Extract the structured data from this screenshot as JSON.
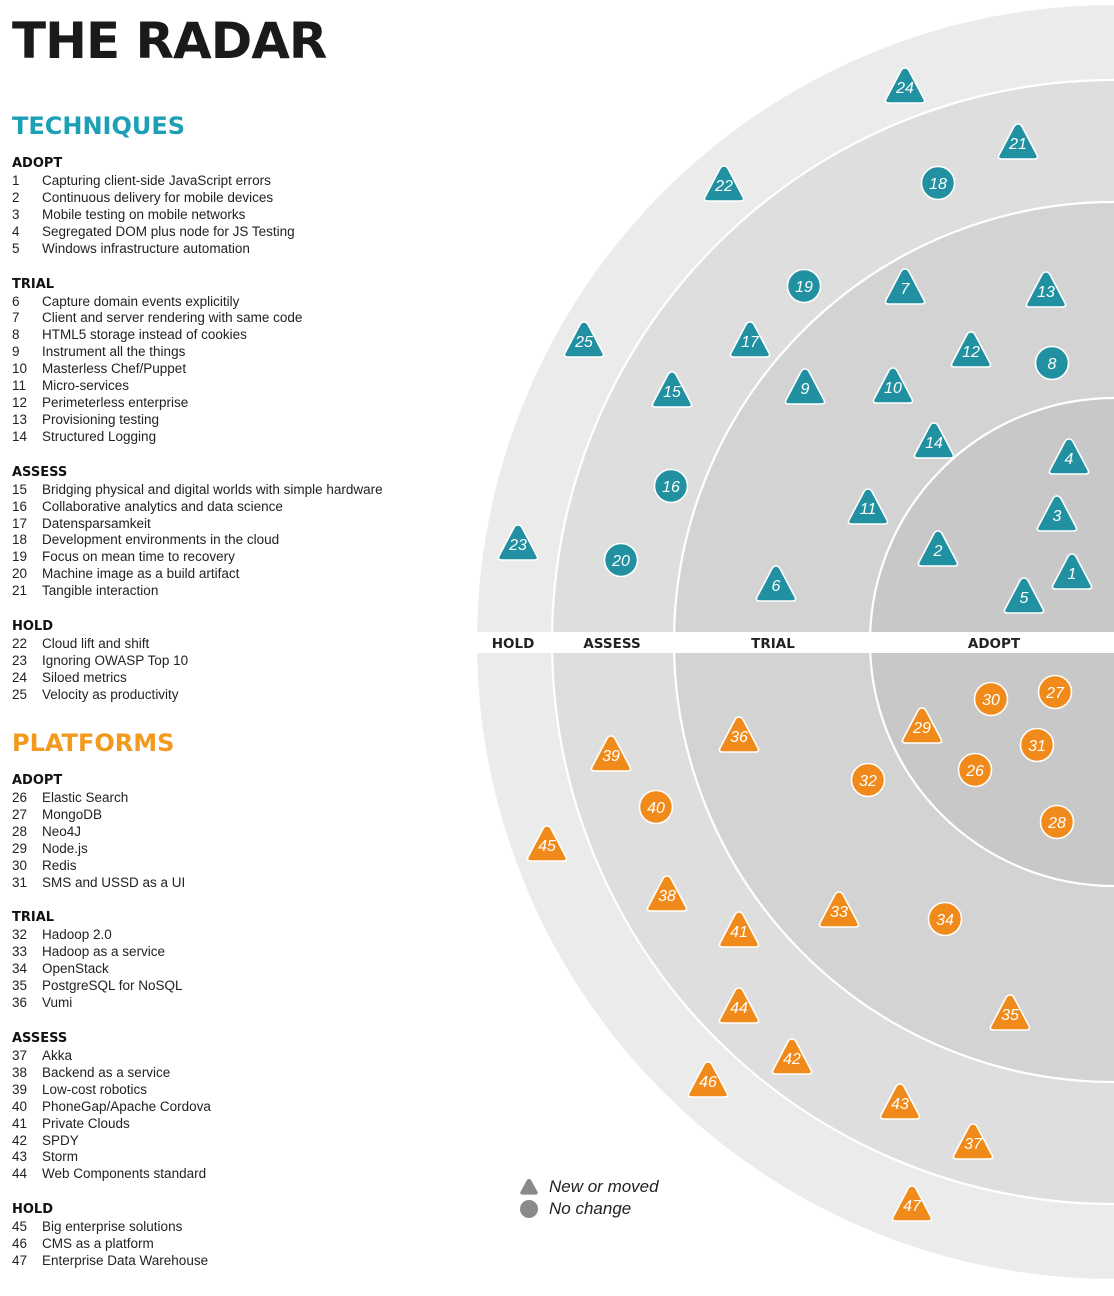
{
  "title": "THE RADAR",
  "colors": {
    "techniques": "#1da0b5",
    "techniques_fill": "#2190a1",
    "platforms": "#f39a1c",
    "platforms_fill": "#f08a1a"
  },
  "techniques": {
    "heading": "TECHNIQUES",
    "groups": [
      {
        "ring": "ADOPT",
        "items": [
          {
            "num": "1",
            "name": "Capturing client-side JavaScript errors"
          },
          {
            "num": "2",
            "name": "Continuous delivery for mobile devices"
          },
          {
            "num": "3",
            "name": "Mobile testing on mobile networks"
          },
          {
            "num": "4",
            "name": "Segregated DOM plus node for JS Testing"
          },
          {
            "num": "5",
            "name": "Windows infrastructure automation"
          }
        ]
      },
      {
        "ring": "TRIAL",
        "items": [
          {
            "num": "6",
            "name": "Capture domain events explicitily"
          },
          {
            "num": "7",
            "name": "Client and server rendering with same code"
          },
          {
            "num": "8",
            "name": "HTML5 storage instead of cookies"
          },
          {
            "num": "9",
            "name": "Instrument all the things"
          },
          {
            "num": "10",
            "name": "Masterless Chef/Puppet"
          },
          {
            "num": "11",
            "name": "Micro-services"
          },
          {
            "num": "12",
            "name": "Perimeterless enterprise"
          },
          {
            "num": "13",
            "name": "Provisioning testing"
          },
          {
            "num": "14",
            "name": "Structured Logging"
          }
        ]
      },
      {
        "ring": "ASSESS",
        "items": [
          {
            "num": "15",
            "name": "Bridging physical and digital worlds with simple hardware"
          },
          {
            "num": "16",
            "name": "Collaborative analytics and data science"
          },
          {
            "num": "17",
            "name": "Datensparsamkeit"
          },
          {
            "num": "18",
            "name": "Development environments in the cloud"
          },
          {
            "num": "19",
            "name": "Focus on mean time to recovery"
          },
          {
            "num": "20",
            "name": "Machine image as a build artifact"
          },
          {
            "num": "21",
            "name": "Tangible interaction"
          }
        ]
      },
      {
        "ring": "HOLD",
        "items": [
          {
            "num": "22",
            "name": "Cloud lift and shift"
          },
          {
            "num": "23",
            "name": "Ignoring OWASP Top 10"
          },
          {
            "num": "24",
            "name": "Siloed metrics"
          },
          {
            "num": "25",
            "name": "Velocity as productivity"
          }
        ]
      }
    ]
  },
  "platforms": {
    "heading": "PLATFORMS",
    "groups": [
      {
        "ring": "ADOPT",
        "items": [
          {
            "num": "26",
            "name": "Elastic Search"
          },
          {
            "num": "27",
            "name": "MongoDB"
          },
          {
            "num": "28",
            "name": "Neo4J"
          },
          {
            "num": "29",
            "name": "Node.js"
          },
          {
            "num": "30",
            "name": "Redis"
          },
          {
            "num": "31",
            "name": "SMS and USSD as a UI"
          }
        ]
      },
      {
        "ring": "TRIAL",
        "items": [
          {
            "num": "32",
            "name": "Hadoop 2.0"
          },
          {
            "num": "33",
            "name": "Hadoop as a service"
          },
          {
            "num": "34",
            "name": "OpenStack"
          },
          {
            "num": "35",
            "name": "PostgreSQL for NoSQL"
          },
          {
            "num": "36",
            "name": "Vumi"
          }
        ]
      },
      {
        "ring": "ASSESS",
        "items": [
          {
            "num": "37",
            "name": "Akka"
          },
          {
            "num": "38",
            "name": "Backend as a service"
          },
          {
            "num": "39",
            "name": "Low-cost robotics"
          },
          {
            "num": "40",
            "name": "PhoneGap/Apache Cordova"
          },
          {
            "num": "41",
            "name": "Private Clouds"
          },
          {
            "num": "42",
            "name": "SPDY"
          },
          {
            "num": "43",
            "name": "Storm"
          },
          {
            "num": "44",
            "name": "Web Components standard"
          }
        ]
      },
      {
        "ring": "HOLD",
        "items": [
          {
            "num": "45",
            "name": "Big enterprise solutions"
          },
          {
            "num": "46",
            "name": "CMS as a platform"
          },
          {
            "num": "47",
            "name": "Enterprise Data Warehouse"
          }
        ]
      }
    ]
  },
  "ring_labels": [
    "HOLD",
    "ASSESS",
    "TRIAL",
    "ADOPT"
  ],
  "legend": {
    "new_or_moved": "New or moved",
    "no_change": "No change"
  },
  "blips": [
    {
      "num": "1",
      "shape": "triangle",
      "quadrant": "techniques",
      "ring": "ADOPT"
    },
    {
      "num": "2",
      "shape": "triangle",
      "quadrant": "techniques",
      "ring": "ADOPT"
    },
    {
      "num": "3",
      "shape": "triangle",
      "quadrant": "techniques",
      "ring": "ADOPT"
    },
    {
      "num": "4",
      "shape": "triangle",
      "quadrant": "techniques",
      "ring": "ADOPT"
    },
    {
      "num": "5",
      "shape": "triangle",
      "quadrant": "techniques",
      "ring": "ADOPT"
    },
    {
      "num": "6",
      "shape": "triangle",
      "quadrant": "techniques",
      "ring": "TRIAL"
    },
    {
      "num": "7",
      "shape": "triangle",
      "quadrant": "techniques",
      "ring": "TRIAL"
    },
    {
      "num": "8",
      "shape": "circle",
      "quadrant": "techniques",
      "ring": "TRIAL"
    },
    {
      "num": "9",
      "shape": "triangle",
      "quadrant": "techniques",
      "ring": "TRIAL"
    },
    {
      "num": "10",
      "shape": "triangle",
      "quadrant": "techniques",
      "ring": "TRIAL"
    },
    {
      "num": "11",
      "shape": "triangle",
      "quadrant": "techniques",
      "ring": "TRIAL"
    },
    {
      "num": "12",
      "shape": "triangle",
      "quadrant": "techniques",
      "ring": "TRIAL"
    },
    {
      "num": "13",
      "shape": "triangle",
      "quadrant": "techniques",
      "ring": "TRIAL"
    },
    {
      "num": "14",
      "shape": "triangle",
      "quadrant": "techniques",
      "ring": "TRIAL"
    },
    {
      "num": "15",
      "shape": "triangle",
      "quadrant": "techniques",
      "ring": "ASSESS"
    },
    {
      "num": "16",
      "shape": "circle",
      "quadrant": "techniques",
      "ring": "ASSESS"
    },
    {
      "num": "17",
      "shape": "triangle",
      "quadrant": "techniques",
      "ring": "ASSESS"
    },
    {
      "num": "18",
      "shape": "circle",
      "quadrant": "techniques",
      "ring": "ASSESS"
    },
    {
      "num": "19",
      "shape": "circle",
      "quadrant": "techniques",
      "ring": "ASSESS"
    },
    {
      "num": "20",
      "shape": "circle",
      "quadrant": "techniques",
      "ring": "ASSESS"
    },
    {
      "num": "21",
      "shape": "triangle",
      "quadrant": "techniques",
      "ring": "ASSESS"
    },
    {
      "num": "22",
      "shape": "triangle",
      "quadrant": "techniques",
      "ring": "HOLD"
    },
    {
      "num": "23",
      "shape": "triangle",
      "quadrant": "techniques",
      "ring": "HOLD"
    },
    {
      "num": "24",
      "shape": "triangle",
      "quadrant": "techniques",
      "ring": "HOLD"
    },
    {
      "num": "25",
      "shape": "triangle",
      "quadrant": "techniques",
      "ring": "HOLD"
    },
    {
      "num": "26",
      "shape": "circle",
      "quadrant": "platforms",
      "ring": "ADOPT"
    },
    {
      "num": "27",
      "shape": "circle",
      "quadrant": "platforms",
      "ring": "ADOPT"
    },
    {
      "num": "28",
      "shape": "circle",
      "quadrant": "platforms",
      "ring": "ADOPT"
    },
    {
      "num": "29",
      "shape": "triangle",
      "quadrant": "platforms",
      "ring": "ADOPT"
    },
    {
      "num": "30",
      "shape": "circle",
      "quadrant": "platforms",
      "ring": "ADOPT"
    },
    {
      "num": "31",
      "shape": "circle",
      "quadrant": "platforms",
      "ring": "ADOPT"
    },
    {
      "num": "32",
      "shape": "circle",
      "quadrant": "platforms",
      "ring": "TRIAL"
    },
    {
      "num": "33",
      "shape": "triangle",
      "quadrant": "platforms",
      "ring": "TRIAL"
    },
    {
      "num": "34",
      "shape": "circle",
      "quadrant": "platforms",
      "ring": "TRIAL"
    },
    {
      "num": "35",
      "shape": "triangle",
      "quadrant": "platforms",
      "ring": "TRIAL"
    },
    {
      "num": "36",
      "shape": "triangle",
      "quadrant": "platforms",
      "ring": "TRIAL"
    },
    {
      "num": "37",
      "shape": "triangle",
      "quadrant": "platforms",
      "ring": "ASSESS"
    },
    {
      "num": "38",
      "shape": "triangle",
      "quadrant": "platforms",
      "ring": "ASSESS"
    },
    {
      "num": "39",
      "shape": "triangle",
      "quadrant": "platforms",
      "ring": "ASSESS"
    },
    {
      "num": "40",
      "shape": "circle",
      "quadrant": "platforms",
      "ring": "ASSESS"
    },
    {
      "num": "41",
      "shape": "triangle",
      "quadrant": "platforms",
      "ring": "ASSESS"
    },
    {
      "num": "42",
      "shape": "triangle",
      "quadrant": "platforms",
      "ring": "ASSESS"
    },
    {
      "num": "43",
      "shape": "triangle",
      "quadrant": "platforms",
      "ring": "ASSESS"
    },
    {
      "num": "44",
      "shape": "triangle",
      "quadrant": "platforms",
      "ring": "ASSESS"
    },
    {
      "num": "45",
      "shape": "triangle",
      "quadrant": "platforms",
      "ring": "HOLD"
    },
    {
      "num": "46",
      "shape": "triangle",
      "quadrant": "platforms",
      "ring": "HOLD"
    },
    {
      "num": "47",
      "shape": "triangle",
      "quadrant": "platforms",
      "ring": "HOLD"
    }
  ]
}
